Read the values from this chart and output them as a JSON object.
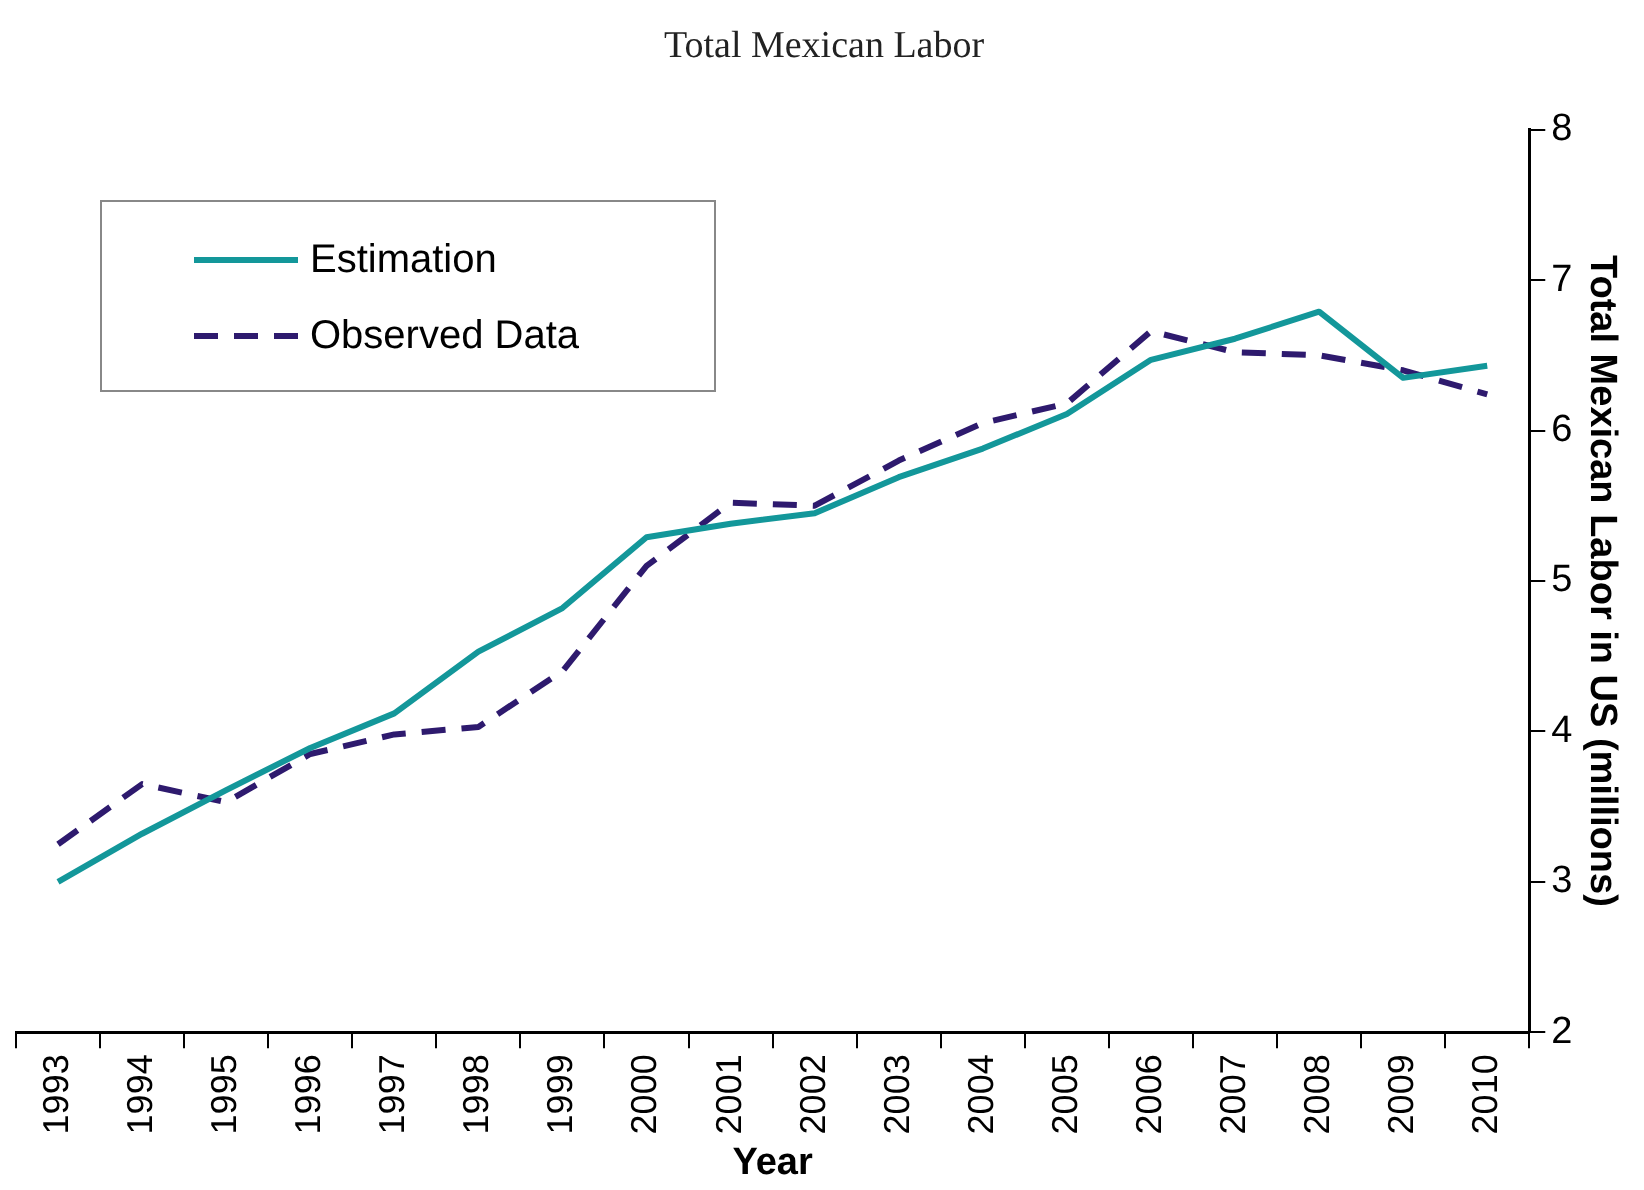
{
  "chart_data": {
    "type": "line",
    "title": "Total Mexican Labor",
    "xlabel": "Year",
    "ylabel": "Total Mexican Labor in US (millions)",
    "categories": [
      "1993",
      "1994",
      "1995",
      "1996",
      "1997",
      "1998",
      "1999",
      "2000",
      "2001",
      "2002",
      "2003",
      "2004",
      "2005",
      "2006",
      "2007",
      "2008",
      "2009",
      "2010"
    ],
    "series": [
      {
        "name": "Estimation",
        "color": "#13979a",
        "line_style": "solid",
        "values": [
          3.0,
          3.32,
          3.61,
          3.89,
          4.12,
          4.53,
          4.82,
          5.29,
          5.38,
          5.45,
          5.69,
          5.88,
          6.11,
          6.47,
          6.61,
          6.79,
          6.35,
          6.43
        ]
      },
      {
        "name": "Observed Data",
        "color": "#2e1a6e",
        "line_style": "dashed",
        "values": [
          3.25,
          3.65,
          3.53,
          3.85,
          3.98,
          4.03,
          4.4,
          5.1,
          5.52,
          5.5,
          5.8,
          6.05,
          6.18,
          6.66,
          6.52,
          6.5,
          6.4,
          6.24
        ]
      }
    ],
    "ylim": [
      2,
      8
    ],
    "yticks": [
      2,
      3,
      4,
      5,
      6,
      7,
      8
    ],
    "grid": false,
    "legend": "top left",
    "marker": "none"
  }
}
